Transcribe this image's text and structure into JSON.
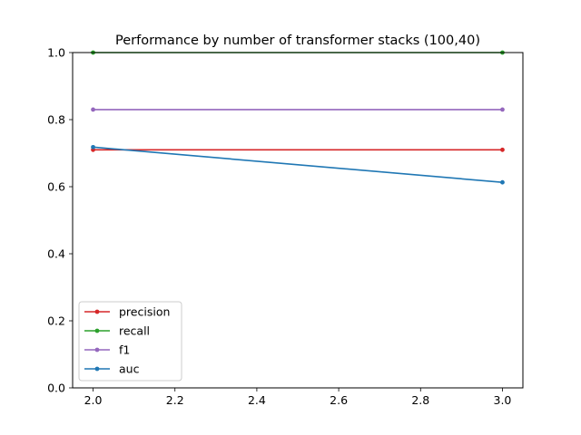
{
  "chart_data": {
    "type": "line",
    "title": "Performance by number of transformer stacks (100,40)",
    "xlabel": "",
    "ylabel": "",
    "x": [
      2.0,
      3.0
    ],
    "xlim": [
      1.95,
      3.05
    ],
    "ylim": [
      0.0,
      1.0
    ],
    "xticks": [
      {
        "value": 2.0,
        "label": "2.0"
      },
      {
        "value": 2.2,
        "label": "2.2"
      },
      {
        "value": 2.4,
        "label": "2.4"
      },
      {
        "value": 2.6,
        "label": "2.6"
      },
      {
        "value": 2.8,
        "label": "2.8"
      },
      {
        "value": 3.0,
        "label": "3.0"
      }
    ],
    "yticks": [
      {
        "value": 0.0,
        "label": "0.0"
      },
      {
        "value": 0.2,
        "label": "0.2"
      },
      {
        "value": 0.4,
        "label": "0.4"
      },
      {
        "value": 0.6,
        "label": "0.6"
      },
      {
        "value": 0.8,
        "label": "0.8"
      },
      {
        "value": 1.0,
        "label": "1.0"
      }
    ],
    "grid": false,
    "legend_position": "lower-left",
    "series": [
      {
        "name": "precision",
        "color": "#d62728",
        "values": [
          0.71,
          0.71
        ]
      },
      {
        "name": "recall",
        "color": "#2ca02c",
        "values": [
          1.0,
          1.0
        ]
      },
      {
        "name": "f1",
        "color": "#9467bd",
        "values": [
          0.83,
          0.83
        ]
      },
      {
        "name": "auc",
        "color": "#1f77b4",
        "values": [
          0.718,
          0.613
        ]
      }
    ]
  }
}
